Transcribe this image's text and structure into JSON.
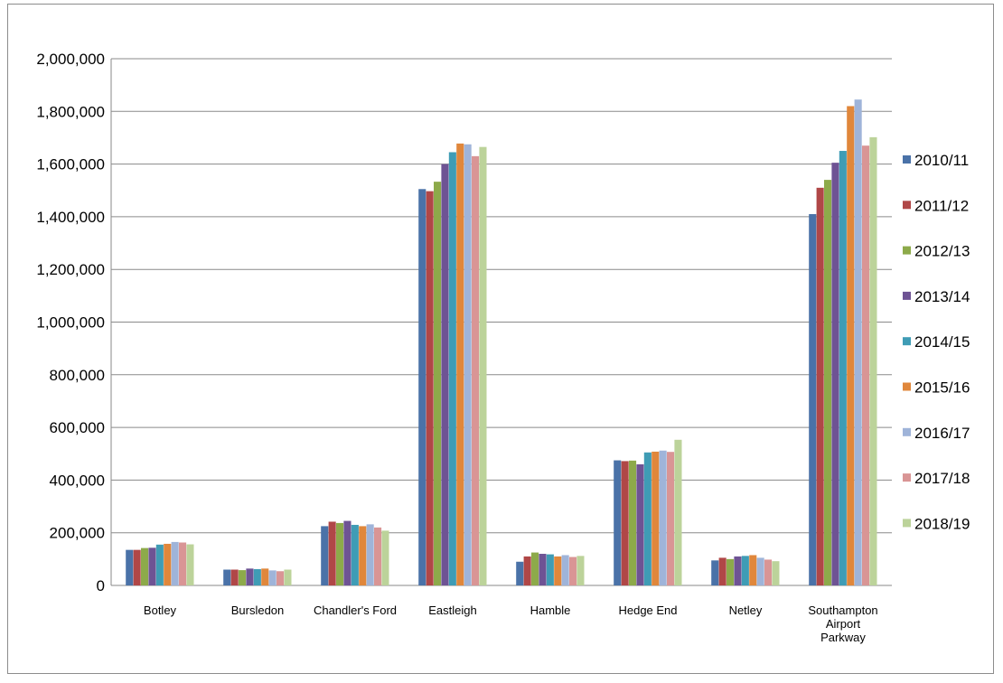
{
  "chart_data": {
    "type": "bar",
    "title": "",
    "xlabel": "",
    "ylabel": "",
    "ylim": [
      0,
      2000000
    ],
    "y_ticks": [
      "0",
      "200,000",
      "400,000",
      "600,000",
      "800,000",
      "1,000,000",
      "1,200,000",
      "1,400,000",
      "1,600,000",
      "1,800,000",
      "2,000,000"
    ],
    "grid": true,
    "legend_position": "right",
    "categories": [
      [
        "Botley"
      ],
      [
        "Bursledon"
      ],
      [
        "Chandler's Ford"
      ],
      [
        "Eastleigh"
      ],
      [
        "Hamble"
      ],
      [
        "Hedge End"
      ],
      [
        "Netley"
      ],
      [
        "Southampton",
        "Airport",
        "Parkway"
      ]
    ],
    "series": [
      {
        "name": "2010/11",
        "color": "#4a72a8",
        "values": [
          135000,
          60000,
          225000,
          1505000,
          90000,
          475000,
          95000,
          1410000
        ]
      },
      {
        "name": "2011/12",
        "color": "#b04747",
        "values": [
          135000,
          60000,
          242000,
          1497000,
          110000,
          472000,
          105000,
          1510000
        ]
      },
      {
        "name": "2012/13",
        "color": "#8daa4a",
        "values": [
          142000,
          58000,
          237000,
          1533000,
          125000,
          474000,
          100000,
          1540000
        ]
      },
      {
        "name": "2013/14",
        "color": "#6e5394",
        "values": [
          143000,
          64000,
          245000,
          1600000,
          120000,
          460000,
          110000,
          1605000
        ]
      },
      {
        "name": "2014/15",
        "color": "#3f9cb5",
        "values": [
          155000,
          62000,
          230000,
          1645000,
          118000,
          505000,
          112000,
          1650000
        ]
      },
      {
        "name": "2015/16",
        "color": "#e0873b",
        "values": [
          158000,
          64000,
          225000,
          1678000,
          110000,
          508000,
          115000,
          1820000
        ]
      },
      {
        "name": "2016/17",
        "color": "#9fb4d9",
        "values": [
          165000,
          57000,
          232000,
          1675000,
          115000,
          512000,
          105000,
          1845000
        ]
      },
      {
        "name": "2017/18",
        "color": "#d99595",
        "values": [
          163000,
          54000,
          220000,
          1630000,
          108000,
          507000,
          98000,
          1670000
        ]
      },
      {
        "name": "2018/19",
        "color": "#bcd39a",
        "values": [
          156000,
          60000,
          208000,
          1665000,
          112000,
          553000,
          92000,
          1702000
        ]
      }
    ]
  }
}
